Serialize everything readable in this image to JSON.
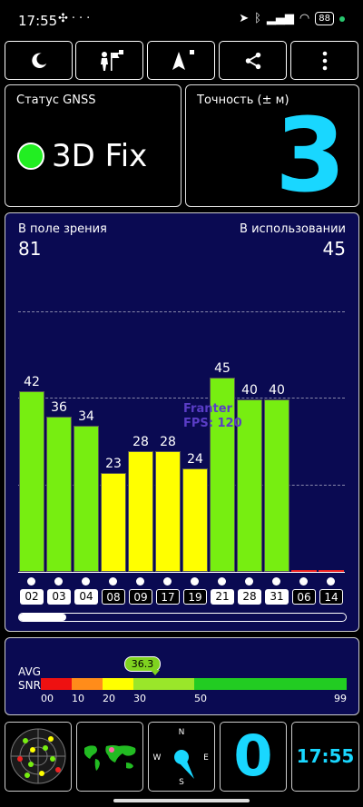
{
  "status_bar": {
    "time": "17:55",
    "left_icons": [
      "fan-icon",
      "more-icon"
    ],
    "right_icons": [
      "location-arrow-icon",
      "bluetooth-icon",
      "signal-icon",
      "wifi-icon"
    ],
    "battery": "88"
  },
  "toolbar": {
    "buttons": [
      {
        "icon": "moon-icon"
      },
      {
        "icon": "person-flag-icon"
      },
      {
        "icon": "navigation-arrow-icon"
      },
      {
        "icon": "share-icon"
      },
      {
        "icon": "more-vertical-icon"
      }
    ]
  },
  "gnss_status": {
    "label": "Статус GNSS",
    "value": "3D Fix",
    "color": "#22ee22"
  },
  "accuracy": {
    "label": "Точность (± м)",
    "value": "3"
  },
  "sky": {
    "in_view_label": "В поле зрения",
    "in_view": "81",
    "in_use_label": "В использовании",
    "in_use": "45"
  },
  "chart_data": {
    "type": "bar",
    "categories": [
      "02",
      "03",
      "04",
      "08",
      "09",
      "17",
      "19",
      "21",
      "28",
      "31",
      "06",
      "14"
    ],
    "values": [
      42,
      36,
      34,
      23,
      28,
      28,
      24,
      45,
      40,
      40,
      0,
      0
    ],
    "used": [
      true,
      true,
      true,
      false,
      false,
      false,
      false,
      true,
      true,
      true,
      false,
      false
    ],
    "colors": [
      "#77ee11",
      "#77ee11",
      "#77ee11",
      "#ffff00",
      "#ffff00",
      "#ffff00",
      "#ffff00",
      "#77ee11",
      "#77ee11",
      "#77ee11",
      "#ee2222",
      "#ee2222"
    ],
    "ylim": [
      0,
      60
    ]
  },
  "overlay": {
    "line1": "Franter",
    "line2": "FPS: 120"
  },
  "snr": {
    "label_avg": "AVG",
    "label_snr": "SNR",
    "avg": "36.3",
    "avg_value": 36.3,
    "ticks": [
      "00",
      "10",
      "20",
      "30",
      "50",
      "99"
    ]
  },
  "bottom": {
    "satellites_icon": "radar-icon",
    "map_icon": "world-map-icon",
    "compass_icon": "compass-icon",
    "compass_letters": [
      "N",
      "W",
      "E",
      "S"
    ],
    "big_value": "0",
    "clock": "17:55"
  }
}
